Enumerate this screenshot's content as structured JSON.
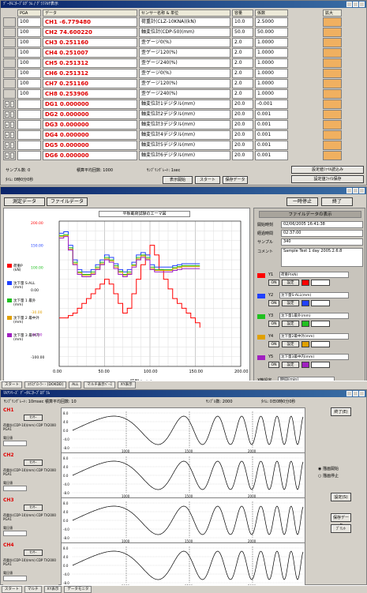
{
  "win1": {
    "title": "ﾃﾞｰﾀﾓﾆﾀｰﾌﾟﾛｸﾞﾗﾑ / ｸﾞﾗﾌﾏﾙﾁ表示",
    "headers": [
      "PGA",
      "データ",
      "センサー名称 & 単位",
      "容量",
      "係数",
      "拡大"
    ],
    "rows": [
      {
        "pga": "100",
        "value": "CH1 -6.779480",
        "sensor": "荷重計(CLZ-10KNA)(kN)",
        "cap": "10.0",
        "coef": "2.5000"
      },
      {
        "pga": "100",
        "value": "CH2 74.600220",
        "sensor": "軸変位計(CDP-50)(mm)",
        "cap": "50.0",
        "coef": "50.000"
      },
      {
        "pga": "100",
        "value": "CH3 0.251160",
        "sensor": "歪ゲージ0(%)",
        "cap": "2.0",
        "coef": "1.0000"
      },
      {
        "pga": "100",
        "value": "CH4 0.251007",
        "sensor": "歪ゲージ120(%)",
        "cap": "2.0",
        "coef": "1.0000"
      },
      {
        "pga": "100",
        "value": "CH5 0.251312",
        "sensor": "歪ゲージ240(%)",
        "cap": "2.0",
        "coef": "1.0000"
      },
      {
        "pga": "100",
        "value": "CH6 0.251312",
        "sensor": "歪ゲージ0(%)",
        "cap": "2.0",
        "coef": "1.0000"
      },
      {
        "pga": "100",
        "value": "CH7 0.251160",
        "sensor": "歪ゲージ120(%)",
        "cap": "2.0",
        "coef": "1.0000"
      },
      {
        "pga": "100",
        "value": "CH8 0.253906",
        "sensor": "歪ゲージ240(%)",
        "cap": "2.0",
        "coef": "1.0000"
      },
      {
        "pga": "",
        "value": "DG1 0.000000",
        "sensor": "軸変位計1デジタル(mm)",
        "cap": "20.0",
        "coef": "-0.001"
      },
      {
        "pga": "",
        "value": "DG2 0.000000",
        "sensor": "軸変位計2デジタル(mm)",
        "cap": "20.0",
        "coef": "0.001"
      },
      {
        "pga": "",
        "value": "DG3 0.000000",
        "sensor": "軸変位計3デジタル(mm)",
        "cap": "20.0",
        "coef": "0.001"
      },
      {
        "pga": "",
        "value": "DG4 0.000000",
        "sensor": "軸変位計4デジタル(mm)",
        "cap": "20.0",
        "coef": "0.001"
      },
      {
        "pga": "",
        "value": "DG5 0.000000",
        "sensor": "軸変位計5デジタル(mm)",
        "cap": "20.0",
        "coef": "0.001"
      },
      {
        "pga": "",
        "value": "DG6 0.000000",
        "sensor": "軸変位計6デジタル(mm)",
        "cap": "20.0",
        "coef": "0.001"
      }
    ],
    "sample_count": "サンプル数: 0",
    "freq_label": "積算平均回数: 1000",
    "rate_label": "ｻﾝﾌﾟﾘﾝｸﾞﾚｰﾄ: 1sec",
    "time_label": "ﾀｲﾑ: 0時0分0秒",
    "buttons": {
      "display": "表示開始",
      "start": "スタート",
      "save": "保存データ",
      "setfile1": "設定値ﾌｧｲﾙ読込み",
      "setfile2": "設定値ﾌｧｲﾙ保存",
      "end": "終了"
    }
  },
  "win2": {
    "tabs": {
      "measure": "測定データ",
      "file": "ファイルデータ"
    },
    "stop_button": "一時停止",
    "end_button": "終了",
    "chart_title": "平板載荷試験のエーマ図",
    "file_panel_title": "ファイルデータの表示",
    "file_fields": [
      {
        "label": "開始時刻",
        "value": "02/06/2005 16:41:38"
      },
      {
        "label": "経過時間",
        "value": "02:37:00"
      },
      {
        "label": "サンプル",
        "value": "340"
      }
    ],
    "comment_label": "コメント",
    "comment_value": "Sample Test 1 day 2005.2.6.8",
    "legend": [
      {
        "name": "荷重P",
        "unit": "(kN)",
        "color": "#ff0000"
      },
      {
        "name": "沈下量 S-ALL",
        "unit": "(mm)",
        "color": "#2040ff"
      },
      {
        "name": "沈下量 1 最外",
        "unit": "(mm)",
        "color": "#20c020"
      },
      {
        "name": "沈下量 2 最中外",
        "unit": "(mm)",
        "color": "#e0a000"
      },
      {
        "name": "沈下量 3 最中内",
        "unit": "(mm)",
        "color": "#a020c0"
      }
    ],
    "channels": [
      {
        "axis": "Y1",
        "name": "荷重P(kN)",
        "color": "#ff0000"
      },
      {
        "axis": "Y2",
        "name": "沈下量S-ALL(mm)",
        "color": "#2040ff"
      },
      {
        "axis": "Y3",
        "name": "沈下量1最外(mm)",
        "color": "#20c020"
      },
      {
        "axis": "Y4",
        "name": "沈下量2最中外(mm)",
        "color": "#e0a000"
      },
      {
        "axis": "Y5",
        "name": "沈下量3最中内(mm)",
        "color": "#a020c0"
      }
    ],
    "on_label": "ON",
    "setting_label": "設定",
    "xaxis_label": "X軸設定",
    "xaxis_value": "時間(min)"
  },
  "chart_data": {
    "type": "line",
    "title": "平板載荷試験のエーマ図",
    "xlabel": "時間 (min)",
    "xlim": [
      0,
      200
    ],
    "x_ticks": [
      "0.00",
      "50.00",
      "100.00",
      "150.00",
      "200.00"
    ],
    "y_ticks": [
      "200.00",
      "150.00",
      "100.00",
      "0.00",
      "-30.00",
      "-50.00",
      "-100.00"
    ],
    "series": [
      {
        "name": "荷重P(kN)",
        "color": "#ff0000",
        "x": [
          0,
          5,
          10,
          15,
          20,
          25,
          30,
          35,
          40,
          45,
          50,
          55,
          60,
          65,
          70,
          75,
          80,
          85,
          90,
          95,
          100,
          105,
          110,
          115,
          120,
          125,
          130,
          135,
          140,
          145,
          150,
          155
        ],
        "y": [
          0,
          0,
          5,
          10,
          20,
          30,
          40,
          50,
          60,
          70,
          80,
          70,
          50,
          30,
          10,
          20,
          50,
          80,
          110,
          130,
          150,
          130,
          100,
          80,
          60,
          40,
          30,
          20,
          10,
          0,
          -10,
          -20
        ]
      },
      {
        "name": "沈下量S-ALL(mm)",
        "color": "#2040ff",
        "x": [
          0,
          5,
          10,
          15,
          20,
          25,
          30,
          35,
          40,
          45,
          50,
          55,
          60,
          65,
          70,
          75,
          80,
          85,
          90,
          95,
          100,
          105,
          110,
          115,
          120,
          125,
          130,
          135,
          140,
          145,
          150,
          155
        ],
        "y": [
          175,
          178,
          150,
          120,
          100,
          95,
          95,
          100,
          110,
          120,
          130,
          125,
          112,
          100,
          95,
          100,
          115,
          130,
          135,
          130,
          110,
          105,
          105,
          105,
          105,
          108,
          110,
          112,
          112,
          112,
          112,
          112
        ]
      },
      {
        "name": "沈下量1最外(mm)",
        "color": "#20c020",
        "x": [
          0,
          5,
          10,
          15,
          20,
          25,
          30,
          35,
          40,
          45,
          50,
          55,
          60,
          65,
          70,
          75,
          80,
          85,
          90,
          95,
          100,
          105,
          110,
          115,
          120,
          125,
          130,
          135,
          140,
          145,
          150,
          155
        ],
        "y": [
          170,
          172,
          145,
          115,
          95,
          90,
          90,
          95,
          105,
          115,
          125,
          120,
          108,
          96,
          90,
          95,
          110,
          125,
          130,
          125,
          105,
          100,
          100,
          100,
          100,
          104,
          106,
          108,
          108,
          108,
          108,
          108
        ]
      },
      {
        "name": "沈下量2最中外(mm)",
        "color": "#e0a000",
        "x": [
          0,
          5,
          10,
          15,
          20,
          25,
          30,
          35,
          40,
          45,
          50,
          55,
          60,
          65,
          70,
          75,
          80,
          85,
          90,
          95,
          100,
          105,
          110,
          115,
          120,
          125,
          130,
          135,
          140,
          145,
          150,
          155
        ],
        "y": [
          168,
          170,
          142,
          112,
          93,
          88,
          88,
          92,
          102,
          112,
          122,
          118,
          105,
          94,
          88,
          92,
          108,
          122,
          128,
          122,
          102,
          98,
          98,
          98,
          98,
          102,
          104,
          106,
          106,
          106,
          106,
          106
        ]
      },
      {
        "name": "沈下量3最中内(mm)",
        "color": "#a020c0",
        "x": [
          0,
          5,
          10,
          15,
          20,
          25,
          30,
          35,
          40,
          45,
          50,
          55,
          60,
          65,
          70,
          75,
          80,
          85,
          90,
          95,
          100,
          105,
          110,
          115,
          120,
          125,
          130,
          135,
          140,
          145,
          150,
          155
        ],
        "y": [
          165,
          168,
          140,
          110,
          90,
          85,
          85,
          90,
          100,
          110,
          120,
          115,
          102,
          90,
          85,
          90,
          105,
          120,
          125,
          120,
          100,
          95,
          95,
          95,
          95,
          98,
          100,
          102,
          102,
          102,
          102,
          102
        ]
      }
    ]
  },
  "taskbar1": [
    "スタート",
    "ｴｸｽﾌﾟﾛｰﾗｰ - [DOKDD]",
    "ALL",
    "マルチ表示ﾍﾞｰｽ",
    "XY表示"
  ],
  "win3": {
    "title": "ﾏﾙﾁｼﾘｰｽﾞ ﾃﾞｰﾀﾓﾆﾀｰﾌﾟﾛｸﾞﾗﾑ",
    "info_left": "ｻﾝﾌﾟﾘﾝｸﾞﾚｰﾄ: 10msec 積算平均回数: 10",
    "sample_count": "ｻﾝﾌﾟﾙ数: 2000",
    "time_label": "ﾀｲﾑ: 0日0時0分0秒",
    "end_button": "終了(E)",
    "radio1": "描画開始",
    "radio2": "描画停止",
    "buttons": {
      "b1": "設定(S)",
      "b2": "保存データ",
      "b3": "ﾌﾟﾘﾝﾄ"
    },
    "channels": [
      {
        "name": "CH1",
        "btn": "ｾﾝｻｰ",
        "info": "荷重計(CDP-10)(mm) CDP TX2000 PGA1",
        "scale": "電圧値"
      },
      {
        "name": "CH2",
        "btn": "ｾﾝｻｰ",
        "info": "荷重計(CDP-10)(mm) CDP TX2000 PGA1",
        "scale": "電圧値"
      },
      {
        "name": "CH3",
        "btn": "ｾﾝｻｰ",
        "info": "荷重計(CDP-10)(mm) CDP TX2000 PGA1",
        "scale": "電圧値"
      },
      {
        "name": "CH4",
        "btn": "ｾﾝｻｰ",
        "info": "荷重計(CDP-10)(mm) CDP TX2000 PGA1",
        "scale": "電圧値"
      }
    ],
    "wave_ticks_y": [
      "8.0",
      "4.0",
      "0.0",
      "-4.0",
      "-8.0"
    ],
    "wave_ticks_x": [
      "1000",
      "1500",
      "2000"
    ]
  },
  "taskbar2": [
    "スタート",
    "マルチ",
    "XY表示",
    "データモニタ"
  ]
}
